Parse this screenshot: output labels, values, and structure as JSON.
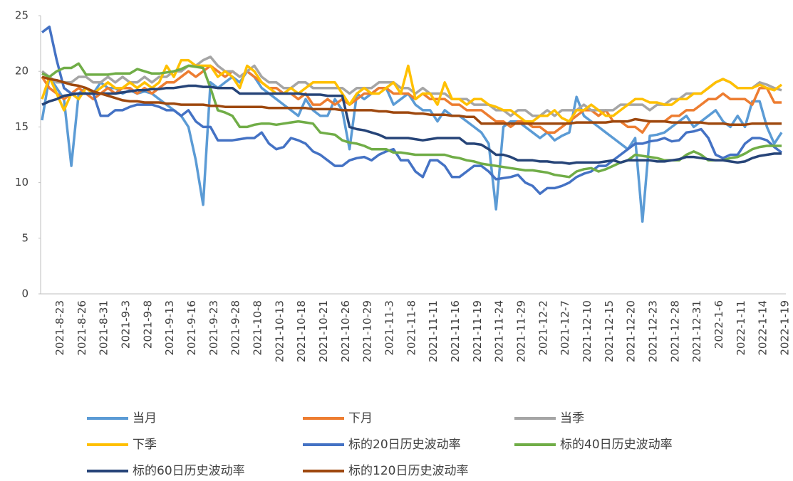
{
  "chart_data": {
    "type": "line",
    "categories": [
      null,
      null,
      "2021-8-23",
      null,
      null,
      "2021-8-26",
      null,
      null,
      "2021-8-31",
      null,
      null,
      "2021-9-3",
      null,
      null,
      "2021-9-8",
      null,
      null,
      "2021-9-13",
      null,
      null,
      "2021-9-16",
      null,
      null,
      "2021-9-23",
      null,
      null,
      "2021-9-28",
      null,
      null,
      "2021-10-8",
      null,
      null,
      "2021-10-13",
      null,
      null,
      "2021-10-18",
      null,
      null,
      "2021-10-21",
      null,
      null,
      "2021-10-26",
      null,
      null,
      "2021-10-29",
      null,
      null,
      "2021-11-3",
      null,
      null,
      "2021-11-8",
      null,
      null,
      "2021-11-11",
      null,
      null,
      "2021-11-16",
      null,
      null,
      "2021-11-19",
      null,
      null,
      "2021-11-24",
      null,
      null,
      "2021-11-29",
      null,
      null,
      "2021-12-2",
      null,
      null,
      "2021-12-7",
      null,
      null,
      "2021-12-10",
      null,
      null,
      "2021-12-15",
      null,
      null,
      "2021-12-20",
      null,
      null,
      "2021-12-23",
      null,
      null,
      "2021-12-28",
      null,
      null,
      "2021-12-31",
      null,
      null,
      "2022-1-6",
      null,
      null,
      "2022-1-11",
      null,
      null,
      "2022-1-14",
      null,
      null,
      "2022-1-19"
    ],
    "ylim": [
      0,
      25
    ],
    "yticks": [
      0,
      5,
      10,
      15,
      20,
      25
    ],
    "series": [
      {
        "name": "当月",
        "color": "#5b9bd5",
        "values": [
          15.6,
          19.5,
          18.5,
          17.5,
          11.5,
          18.0,
          18.5,
          18.0,
          19.0,
          18.5,
          18.5,
          18.0,
          18.3,
          18.0,
          18.2,
          18.0,
          17.5,
          17.0,
          16.5,
          16.0,
          15.0,
          12.0,
          8.0,
          19.0,
          18.5,
          19.0,
          19.5,
          19.0,
          20.0,
          19.5,
          18.5,
          18.0,
          17.5,
          17.0,
          16.5,
          16.0,
          17.5,
          16.5,
          16.0,
          16.0,
          17.5,
          16.5,
          13.0,
          18.0,
          17.5,
          18.0,
          18.5,
          18.5,
          17.0,
          17.5,
          18.0,
          17.0,
          16.5,
          16.5,
          15.5,
          16.5,
          16.0,
          16.0,
          15.5,
          15.0,
          14.5,
          13.5,
          7.6,
          15.0,
          15.5,
          15.5,
          15.0,
          14.5,
          14.0,
          14.5,
          13.8,
          14.2,
          14.5,
          17.7,
          16.0,
          15.5,
          15.0,
          14.5,
          14.0,
          13.5,
          13.0,
          14.0,
          6.5,
          14.2,
          14.3,
          14.5,
          15.0,
          15.5,
          16.0,
          15.0,
          15.5,
          16.0,
          16.5,
          15.5,
          15.0,
          16.0,
          15.0,
          17.3,
          17.3,
          15.0,
          13.5,
          14.5
        ]
      },
      {
        "name": "下月",
        "color": "#ed7d31",
        "values": [
          19.5,
          18.5,
          18.0,
          17.5,
          18.0,
          18.5,
          18.0,
          17.5,
          18.0,
          18.5,
          18.0,
          18.5,
          18.5,
          18.0,
          18.5,
          18.0,
          18.5,
          19.0,
          19.0,
          19.5,
          20.0,
          19.5,
          20.0,
          20.5,
          20.0,
          19.5,
          20.0,
          19.5,
          20.0,
          19.5,
          19.0,
          18.5,
          18.5,
          18.0,
          18.0,
          17.5,
          18.0,
          17.0,
          17.0,
          17.5,
          17.0,
          17.5,
          17.0,
          17.5,
          18.0,
          18.0,
          18.5,
          18.5,
          18.0,
          18.0,
          18.0,
          17.5,
          18.0,
          17.5,
          17.5,
          17.5,
          17.0,
          17.0,
          16.5,
          16.5,
          16.5,
          16.0,
          15.5,
          15.5,
          15.0,
          15.5,
          15.5,
          15.0,
          15.0,
          14.5,
          14.5,
          15.0,
          15.5,
          16.0,
          16.5,
          16.5,
          16.0,
          16.5,
          15.5,
          15.5,
          15.0,
          15.0,
          14.5,
          15.5,
          15.5,
          15.5,
          16.0,
          16.0,
          16.5,
          16.5,
          17.0,
          17.5,
          17.5,
          18.0,
          17.5,
          17.5,
          17.5,
          17.0,
          18.5,
          18.5,
          17.2,
          17.2
        ]
      },
      {
        "name": "当季",
        "color": "#a5a5a5",
        "values": [
          20.0,
          19.5,
          19.0,
          19.0,
          19.0,
          19.5,
          19.5,
          19.0,
          19.0,
          19.5,
          19.0,
          19.5,
          19.0,
          19.0,
          19.5,
          19.0,
          19.5,
          19.5,
          20.0,
          20.0,
          20.5,
          20.5,
          21.0,
          21.3,
          20.5,
          20.0,
          20.0,
          19.5,
          20.0,
          20.5,
          19.5,
          19.0,
          19.0,
          18.5,
          18.5,
          19.0,
          19.0,
          18.5,
          18.5,
          18.5,
          18.5,
          18.5,
          18.0,
          18.5,
          18.5,
          18.5,
          19.0,
          19.0,
          19.0,
          18.5,
          18.5,
          18.0,
          18.5,
          18.0,
          18.0,
          18.0,
          17.5,
          17.5,
          17.5,
          17.0,
          17.0,
          17.0,
          16.5,
          16.5,
          16.0,
          16.5,
          16.5,
          16.0,
          16.0,
          16.5,
          16.0,
          16.5,
          16.5,
          16.5,
          17.0,
          16.5,
          16.5,
          16.5,
          16.5,
          17.0,
          17.0,
          17.0,
          17.0,
          16.5,
          17.0,
          17.0,
          17.5,
          17.5,
          18.0,
          18.0,
          18.0,
          18.5,
          19.0,
          19.3,
          19.0,
          18.5,
          18.5,
          18.5,
          19.0,
          18.8,
          18.5,
          18.3
        ]
      },
      {
        "name": "下季",
        "color": "#ffc000",
        "values": [
          17.5,
          19.5,
          18.0,
          16.5,
          18.0,
          17.5,
          18.5,
          18.0,
          18.5,
          19.0,
          18.5,
          18.5,
          19.0,
          18.5,
          19.0,
          18.5,
          19.0,
          20.5,
          19.5,
          21.0,
          21.0,
          20.5,
          20.5,
          20.5,
          19.5,
          20.0,
          19.5,
          18.5,
          20.5,
          20.0,
          19.0,
          18.5,
          18.0,
          18.0,
          18.5,
          18.0,
          18.5,
          19.0,
          19.0,
          19.0,
          19.0,
          18.0,
          17.0,
          18.0,
          18.5,
          18.0,
          18.0,
          18.5,
          19.0,
          18.0,
          20.5,
          17.5,
          18.0,
          18.0,
          17.0,
          19.0,
          17.5,
          17.5,
          17.0,
          17.5,
          17.5,
          17.0,
          16.8,
          16.5,
          16.5,
          16.0,
          15.5,
          15.5,
          16.0,
          16.0,
          16.5,
          15.8,
          15.5,
          16.5,
          16.5,
          17.0,
          16.5,
          16.0,
          16.0,
          16.5,
          17.0,
          17.5,
          17.5,
          17.2,
          17.2,
          17.0,
          17.0,
          17.5,
          17.5,
          18.0,
          18.0,
          18.5,
          19.0,
          19.3,
          19.0,
          18.5,
          18.5,
          18.5,
          18.8,
          18.5,
          18.3,
          18.8
        ]
      },
      {
        "name": "标的20日历史波动率",
        "color": "#4472c4",
        "values": [
          23.5,
          24.0,
          21.0,
          18.5,
          18.0,
          18.0,
          18.0,
          18.0,
          16.0,
          16.0,
          16.5,
          16.5,
          16.8,
          17.0,
          17.0,
          17.0,
          16.8,
          16.5,
          16.5,
          16.0,
          16.5,
          15.5,
          15.0,
          15.0,
          13.8,
          13.8,
          13.8,
          13.9,
          14.0,
          14.0,
          14.5,
          13.5,
          13.0,
          13.2,
          14.0,
          13.8,
          13.5,
          12.8,
          12.5,
          12.0,
          11.5,
          11.5,
          12.0,
          12.2,
          12.3,
          12.0,
          12.5,
          12.8,
          13.0,
          12.0,
          12.0,
          11.0,
          10.5,
          12.0,
          12.0,
          11.5,
          10.5,
          10.5,
          11.0,
          11.5,
          11.5,
          11.0,
          10.3,
          10.4,
          10.5,
          10.7,
          10.0,
          9.7,
          9.0,
          9.5,
          9.5,
          9.7,
          10.0,
          10.5,
          10.8,
          11.0,
          11.5,
          11.5,
          12.0,
          12.5,
          13.0,
          13.5,
          13.5,
          13.7,
          13.8,
          14.0,
          13.7,
          13.8,
          14.5,
          14.6,
          14.8,
          14.0,
          12.5,
          12.2,
          12.5,
          12.5,
          13.5,
          14.0,
          14.0,
          13.8,
          13.2,
          12.7
        ]
      },
      {
        "name": "标的40日历史波动率",
        "color": "#70ad47",
        "values": [
          19.8,
          19.5,
          20.0,
          20.3,
          20.3,
          20.7,
          19.7,
          19.7,
          19.7,
          19.7,
          19.8,
          19.8,
          19.8,
          20.2,
          20.0,
          19.8,
          19.8,
          19.9,
          20.0,
          20.2,
          20.5,
          20.4,
          20.3,
          18.5,
          16.5,
          16.3,
          16.0,
          15.0,
          15.0,
          15.2,
          15.3,
          15.3,
          15.2,
          15.3,
          15.4,
          15.5,
          15.4,
          15.3,
          14.5,
          14.4,
          14.3,
          13.8,
          13.6,
          13.5,
          13.3,
          13.0,
          13.0,
          13.0,
          12.7,
          12.7,
          12.6,
          12.5,
          12.5,
          12.5,
          12.5,
          12.5,
          12.3,
          12.2,
          12.0,
          11.9,
          11.7,
          11.6,
          11.5,
          11.4,
          11.3,
          11.2,
          11.1,
          11.1,
          11.0,
          10.9,
          10.7,
          10.6,
          10.5,
          11.0,
          11.2,
          11.3,
          11.0,
          11.2,
          11.5,
          11.8,
          12.0,
          12.5,
          12.4,
          12.3,
          12.2,
          12.0,
          12.0,
          12.0,
          12.5,
          12.8,
          12.5,
          12.0,
          12.0,
          12.0,
          12.2,
          12.3,
          12.6,
          13.0,
          13.2,
          13.3,
          13.3,
          13.3
        ]
      },
      {
        "name": "标的60日历史波动率",
        "color": "#264478",
        "values": [
          17.0,
          17.3,
          17.5,
          17.8,
          17.9,
          18.0,
          18.0,
          18.0,
          18.0,
          18.0,
          18.0,
          18.1,
          18.2,
          18.3,
          18.3,
          18.4,
          18.4,
          18.5,
          18.5,
          18.6,
          18.7,
          18.7,
          18.6,
          18.6,
          18.5,
          18.5,
          18.5,
          18.0,
          18.0,
          18.0,
          18.0,
          18.0,
          18.0,
          18.0,
          18.0,
          18.0,
          17.9,
          17.9,
          17.9,
          17.8,
          17.8,
          17.8,
          15.0,
          14.8,
          14.7,
          14.5,
          14.3,
          14.0,
          14.0,
          14.0,
          14.0,
          13.9,
          13.8,
          13.9,
          14.0,
          14.0,
          14.0,
          14.0,
          13.5,
          13.5,
          13.4,
          13.0,
          12.5,
          12.5,
          12.3,
          12.0,
          12.0,
          12.0,
          11.9,
          11.9,
          11.8,
          11.8,
          11.7,
          11.8,
          11.8,
          11.8,
          11.8,
          11.9,
          12.0,
          11.8,
          12.0,
          12.0,
          12.0,
          12.0,
          11.9,
          11.9,
          12.0,
          12.1,
          12.3,
          12.3,
          12.2,
          12.1,
          12.0,
          12.0,
          11.9,
          11.8,
          11.9,
          12.2,
          12.4,
          12.5,
          12.6,
          12.6
        ]
      },
      {
        "name": "标的120日历史波动率",
        "color": "#9e480e",
        "values": [
          19.5,
          19.3,
          19.2,
          19.0,
          18.8,
          18.7,
          18.5,
          18.2,
          18.0,
          17.8,
          17.6,
          17.4,
          17.3,
          17.3,
          17.2,
          17.2,
          17.2,
          17.1,
          17.1,
          17.0,
          17.0,
          17.0,
          17.0,
          16.9,
          16.9,
          16.8,
          16.8,
          16.8,
          16.8,
          16.8,
          16.8,
          16.7,
          16.7,
          16.7,
          16.7,
          16.7,
          16.7,
          16.6,
          16.6,
          16.6,
          16.6,
          16.5,
          16.5,
          16.5,
          16.5,
          16.5,
          16.4,
          16.4,
          16.3,
          16.3,
          16.3,
          16.2,
          16.2,
          16.1,
          16.1,
          16.1,
          16.0,
          16.0,
          15.9,
          15.9,
          15.3,
          15.3,
          15.3,
          15.3,
          15.3,
          15.3,
          15.3,
          15.3,
          15.3,
          15.3,
          15.3,
          15.3,
          15.3,
          15.4,
          15.4,
          15.4,
          15.4,
          15.4,
          15.5,
          15.5,
          15.5,
          15.7,
          15.6,
          15.5,
          15.5,
          15.5,
          15.4,
          15.4,
          15.4,
          15.4,
          15.4,
          15.3,
          15.3,
          15.3,
          15.2,
          15.2,
          15.2,
          15.3,
          15.3,
          15.3,
          15.3,
          15.3
        ]
      }
    ]
  }
}
